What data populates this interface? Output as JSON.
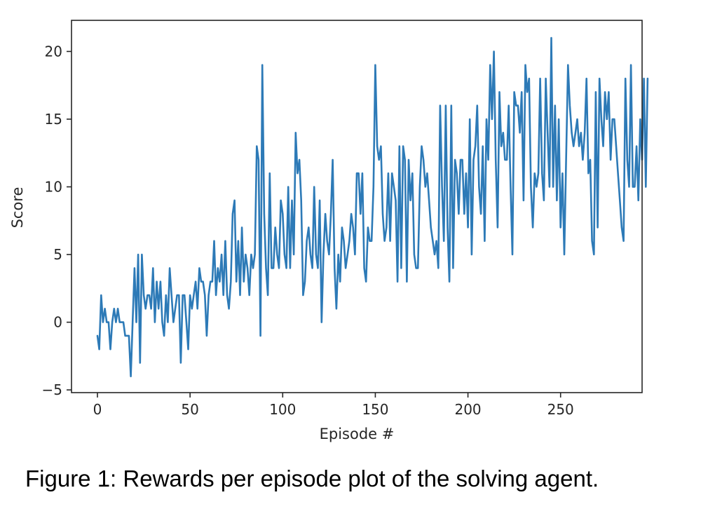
{
  "caption": "Figure 1: Rewards per episode plot of the solving agent.",
  "chart_data": {
    "type": "line",
    "title": "",
    "xlabel": "Episode #",
    "ylabel": "Score",
    "xlim": [
      -14,
      294
    ],
    "ylim": [
      -5.2,
      22.3
    ],
    "xticks": [
      0,
      50,
      100,
      150,
      200,
      250
    ],
    "yticks": [
      -5,
      0,
      5,
      10,
      15,
      20
    ],
    "xtick_labels": [
      "0",
      "50",
      "100",
      "150",
      "200",
      "250"
    ],
    "ytick_labels": [
      "−5",
      "0",
      "5",
      "10",
      "15",
      "20"
    ],
    "grid": false,
    "color": "#2d7ab7",
    "series": [
      {
        "x_start": 0,
        "values": [
          -1,
          -2,
          2,
          0,
          1,
          0,
          0,
          -2,
          0,
          1,
          0,
          1,
          0,
          0,
          0,
          -1,
          -1,
          -1,
          -4,
          0,
          4,
          0,
          5,
          -3,
          5,
          2,
          1,
          2,
          2,
          1,
          4,
          0,
          3,
          1,
          3,
          0,
          -1,
          2,
          0,
          4,
          2,
          0,
          1,
          2,
          2,
          -3,
          2,
          2,
          0,
          -2,
          2,
          1,
          2,
          3,
          1,
          4,
          3,
          3,
          2,
          -1,
          2,
          3,
          3,
          6,
          2,
          4,
          3,
          5,
          2,
          6,
          2,
          1,
          3,
          8,
          9,
          3,
          6,
          2,
          7,
          3,
          5,
          4,
          2,
          5,
          4,
          5,
          13,
          12,
          -1,
          19,
          8,
          4,
          2,
          11,
          4,
          4,
          7,
          5,
          4,
          9,
          8,
          5,
          4,
          10,
          4,
          9,
          5,
          14,
          11,
          12,
          9,
          2,
          3,
          6,
          7,
          5,
          4,
          10,
          5,
          4,
          9,
          0,
          5,
          8,
          6,
          5,
          8,
          12,
          4,
          1,
          5,
          3,
          7,
          6,
          4,
          5,
          6,
          8,
          7,
          5,
          11,
          11,
          8,
          11,
          4,
          3,
          7,
          6,
          6,
          10,
          19,
          13,
          12,
          13,
          8,
          6,
          7,
          11,
          6,
          11,
          10,
          9,
          3,
          13,
          4,
          13,
          12,
          3,
          12,
          9,
          11,
          5,
          4,
          4,
          10,
          13,
          12,
          10,
          11,
          9,
          7,
          6,
          5,
          6,
          4,
          16,
          10,
          6,
          16,
          7,
          3,
          16,
          4,
          12,
          11,
          8,
          12,
          12,
          8,
          11,
          7,
          15,
          5,
          12,
          13,
          16,
          10,
          8,
          13,
          6,
          15,
          12,
          19,
          15,
          20,
          12,
          7,
          17,
          13,
          14,
          12,
          12,
          16,
          10,
          5,
          17,
          16,
          16,
          14,
          17,
          9,
          19,
          17,
          18,
          10,
          7,
          11,
          10,
          11,
          18,
          11,
          9,
          18,
          14,
          10,
          21,
          10,
          16,
          9,
          15,
          7,
          11,
          5,
          12,
          19,
          16,
          14,
          13,
          14,
          15,
          13,
          14,
          12,
          14,
          18,
          11,
          12,
          6,
          5,
          17,
          7,
          18,
          15,
          13,
          17,
          15,
          17,
          12,
          15,
          15,
          13,
          11,
          9,
          7,
          6,
          18,
          12,
          10,
          19,
          10,
          10,
          13,
          9,
          15,
          12,
          18,
          10,
          18
        ]
      }
    ]
  }
}
